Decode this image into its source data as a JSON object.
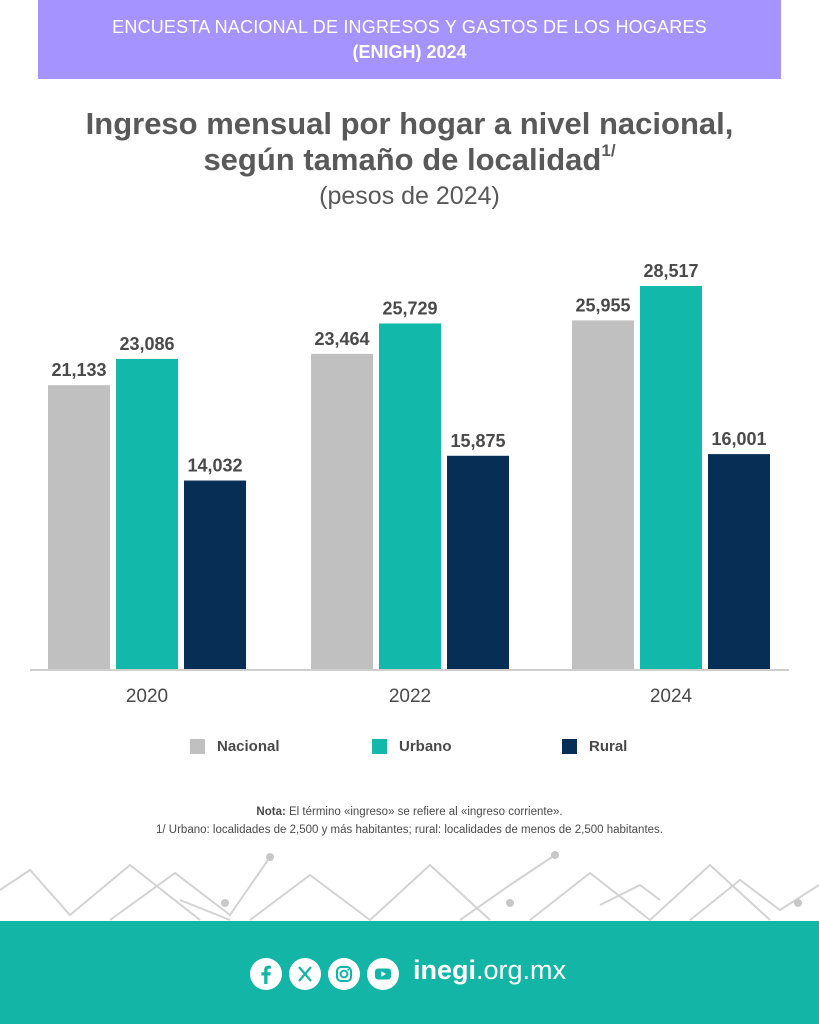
{
  "banner": {
    "line1": "ENCUESTA NACIONAL DE INGRESOS Y GASTOS DE LOS HOGARES",
    "line2": "(ENIGH) 2024",
    "color": "#a593ff"
  },
  "title": {
    "line1": "Ingreso mensual por hogar a nivel nacional,",
    "line2": "según tamaño de localidad",
    "footnote_mark": "1/",
    "subtitle": "(pesos de 2024)"
  },
  "chart_data": {
    "type": "bar",
    "categories": [
      "2020",
      "2022",
      "2024"
    ],
    "series": [
      {
        "name": "Nacional",
        "color": "#c0c0c0",
        "values": [
          21133,
          23464,
          25955
        ],
        "labels": [
          "21,133",
          "23,464",
          "25,955"
        ]
      },
      {
        "name": "Urbano",
        "color": "#12b9ab",
        "values": [
          23086,
          25729,
          28517
        ],
        "labels": [
          "23,086",
          "25,729",
          "28,517"
        ]
      },
      {
        "name": "Rural",
        "color": "#072e55",
        "values": [
          14032,
          15875,
          16001
        ],
        "labels": [
          "14,032",
          "15,875",
          "16,001"
        ]
      }
    ],
    "ylim": [
      0,
      28517
    ],
    "grid": false,
    "legend_position": "bottom"
  },
  "notes": {
    "note_label": "Nota:",
    "note_text": " El término «ingreso» se refiere al «ingreso corriente».",
    "footnote": "1/ Urbano: localidades de 2,500 y más habitantes; rural: localidades de menos de 2,500 habitantes."
  },
  "footer": {
    "site_bold": "inegi",
    "site_rest": ".org.mx",
    "color": "#12b5a6",
    "icons": [
      "facebook-icon",
      "x-icon",
      "instagram-icon",
      "youtube-icon"
    ]
  }
}
